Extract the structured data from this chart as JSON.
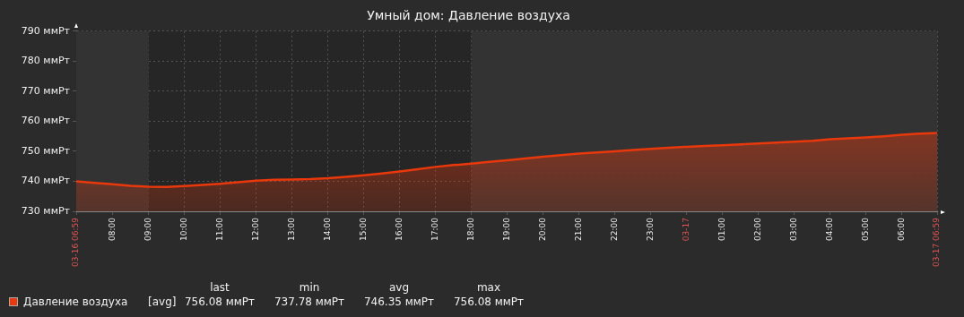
{
  "chart_data": {
    "type": "area",
    "title": "Умный дом: Давление воздуха",
    "x": [
      "--03-16T06:59",
      "--03-16T07:30",
      "--03-16T08:00",
      "--03-16T08:30",
      "--03-16T09:00",
      "--03-16T09:30",
      "--03-16T10:00",
      "--03-16T10:30",
      "--03-16T11:00",
      "--03-16T11:30",
      "--03-16T12:00",
      "--03-16T12:30",
      "--03-16T13:00",
      "--03-16T13:30",
      "--03-16T14:00",
      "--03-16T14:30",
      "--03-16T15:00",
      "--03-16T15:30",
      "--03-16T16:00",
      "--03-16T16:30",
      "--03-16T17:00",
      "--03-16T17:30",
      "--03-16T18:00",
      "--03-16T18:30",
      "--03-16T19:00",
      "--03-16T19:30",
      "--03-16T20:00",
      "--03-16T20:30",
      "--03-16T21:00",
      "--03-16T21:30",
      "--03-16T22:00",
      "--03-16T22:30",
      "--03-16T23:00",
      "--03-16T23:30",
      "--03-17T00:00",
      "--03-17T00:30",
      "--03-17T01:00",
      "--03-17T01:30",
      "--03-17T02:00",
      "--03-17T02:30",
      "--03-17T03:00",
      "--03-17T03:30",
      "--03-17T04:00",
      "--03-17T04:30",
      "--03-17T05:00",
      "--03-17T05:30",
      "--03-17T06:00",
      "--03-17T06:30",
      "--03-17T06:59"
    ],
    "series": [
      {
        "name": "Давление воздуха",
        "color": "#e8380c",
        "values": [
          740.0,
          739.5,
          739.0,
          738.5,
          738.2,
          738.1,
          738.4,
          738.8,
          739.2,
          739.7,
          740.2,
          740.5,
          740.6,
          740.7,
          741.0,
          741.5,
          742.0,
          742.6,
          743.3,
          744.0,
          744.8,
          745.4,
          745.9,
          746.5,
          747.0,
          747.6,
          748.2,
          748.7,
          749.2,
          749.6,
          750.0,
          750.4,
          750.8,
          751.2,
          751.5,
          751.8,
          752.0,
          752.3,
          752.6,
          752.9,
          753.2,
          753.5,
          754.0,
          754.3,
          754.6,
          755.0,
          755.5,
          755.9,
          756.1
        ]
      }
    ],
    "xlim": [
      "--03-16T06:59",
      "--03-17T06:59"
    ],
    "xticks": [
      {
        "value": "--03-16T06:59",
        "label": "03-16 06:59"
      },
      {
        "value": "--03-16T08:00",
        "label": "08:00"
      },
      {
        "value": "--03-16T09:00",
        "label": "09:00"
      },
      {
        "value": "--03-16T10:00",
        "label": "10:00"
      },
      {
        "value": "--03-16T11:00",
        "label": "11:00"
      },
      {
        "value": "--03-16T12:00",
        "label": "12:00"
      },
      {
        "value": "--03-16T13:00",
        "label": "13:00"
      },
      {
        "value": "--03-16T14:00",
        "label": "14:00"
      },
      {
        "value": "--03-16T15:00",
        "label": "15:00"
      },
      {
        "value": "--03-16T16:00",
        "label": "16:00"
      },
      {
        "value": "--03-16T17:00",
        "label": "17:00"
      },
      {
        "value": "--03-16T18:00",
        "label": "18:00"
      },
      {
        "value": "--03-16T19:00",
        "label": "19:00"
      },
      {
        "value": "--03-16T20:00",
        "label": "20:00"
      },
      {
        "value": "--03-16T21:00",
        "label": "21:00"
      },
      {
        "value": "--03-16T22:00",
        "label": "22:00"
      },
      {
        "value": "--03-16T23:00",
        "label": "23:00"
      },
      {
        "value": "--03-17T00:00",
        "label": "03-17"
      },
      {
        "value": "--03-17T01:00",
        "label": "01:00"
      },
      {
        "value": "--03-17T02:00",
        "label": "02:00"
      },
      {
        "value": "--03-17T03:00",
        "label": "03:00"
      },
      {
        "value": "--03-17T04:00",
        "label": "04:00"
      },
      {
        "value": "--03-17T05:00",
        "label": "05:00"
      },
      {
        "value": "--03-17T06:00",
        "label": "06:00"
      },
      {
        "value": "--03-17T06:59",
        "label": "03-17 06:59"
      }
    ],
    "ylim": [
      730,
      790
    ],
    "yticks": [
      {
        "value": 730,
        "label": "730 ммРт"
      },
      {
        "value": 740,
        "label": "740 ммРт"
      },
      {
        "value": 750,
        "label": "750 ммРт"
      },
      {
        "value": 760,
        "label": "760 ммРт"
      },
      {
        "value": 770,
        "label": "770 ммРт"
      },
      {
        "value": 780,
        "label": "780 ммРт"
      },
      {
        "value": 790,
        "label": "790 ммРт"
      }
    ],
    "bands": [
      {
        "axis": "x",
        "from": "--03-16T06:59",
        "to": "--03-16T09:00",
        "color": "#333333"
      },
      {
        "axis": "x",
        "from": "--03-16T18:00",
        "to": "--03-17T06:59",
        "color": "#333333"
      }
    ],
    "grid": true,
    "legend": "bottom",
    "annotations": [
      "[avg]",
      "last",
      "min",
      "avg",
      "max",
      "756.08 ммРт",
      "737.78 ммРт",
      "746.35 ммРт",
      "756.08 ммРт"
    ]
  }
}
